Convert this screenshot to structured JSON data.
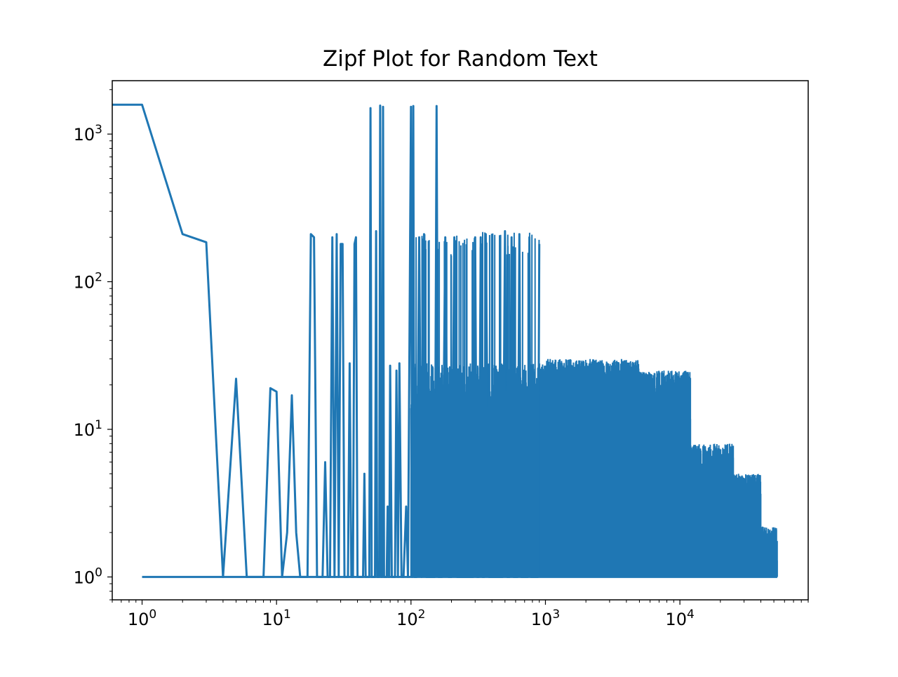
{
  "chart_data": {
    "type": "line",
    "title": "Zipf Plot for Random Text",
    "xlabel": "",
    "ylabel": "",
    "xscale": "log",
    "yscale": "log",
    "xlim": [
      0.6,
      90000
    ],
    "ylim": [
      0.7,
      2300
    ],
    "grid": false,
    "legend": "none",
    "line_color": "#1f77b4",
    "x_ticks": [
      {
        "value": 1,
        "base": "10",
        "exp": "0"
      },
      {
        "value": 10,
        "base": "10",
        "exp": "1"
      },
      {
        "value": 100,
        "base": "10",
        "exp": "2"
      },
      {
        "value": 1000,
        "base": "10",
        "exp": "3"
      },
      {
        "value": 10000,
        "base": "10",
        "exp": "4"
      }
    ],
    "y_ticks": [
      {
        "value": 1,
        "base": "10",
        "exp": "0"
      },
      {
        "value": 10,
        "base": "10",
        "exp": "1"
      },
      {
        "value": 100,
        "base": "10",
        "exp": "2"
      },
      {
        "value": 1000,
        "base": "10",
        "exp": "3"
      }
    ],
    "series": [
      {
        "x": [
          0,
          1,
          2,
          3,
          4,
          5,
          6,
          7,
          8,
          9,
          10,
          11,
          12,
          13,
          14,
          15,
          16,
          17,
          18,
          19,
          20,
          21,
          22,
          23,
          24,
          25,
          26,
          27,
          28,
          29,
          30,
          31,
          32,
          33,
          34,
          35,
          36,
          37,
          38,
          39,
          40,
          41,
          42,
          43,
          44,
          45,
          46,
          47,
          48,
          49,
          50,
          51,
          52,
          53,
          54,
          55,
          56,
          57,
          58,
          59,
          60,
          61,
          62,
          63,
          64,
          65,
          66,
          67,
          68,
          69,
          70,
          72,
          74,
          76,
          78,
          80,
          82,
          85,
          88,
          92,
          95,
          100,
          102,
          104,
          106,
          110,
          115,
          120,
          125,
          130,
          140,
          150,
          155,
          160,
          170,
          180,
          190,
          200,
          210,
          220,
          230,
          240,
          250,
          260,
          270,
          280,
          290,
          300,
          310,
          320,
          330,
          340,
          350,
          360,
          380,
          400,
          420,
          440,
          460,
          480,
          500,
          520,
          540,
          560,
          580,
          600,
          620,
          640,
          660,
          680,
          700,
          720,
          740,
          760,
          780,
          800,
          820,
          840,
          860,
          880,
          900
        ],
        "y": [
          1580,
          1580,
          210,
          185,
          1,
          22,
          1,
          1,
          1,
          19,
          18,
          1,
          2,
          17,
          2,
          1,
          1,
          1,
          210,
          200,
          1,
          1,
          1,
          6,
          1,
          1,
          200,
          1,
          210,
          1,
          180,
          180,
          1,
          1,
          1,
          28,
          1,
          1,
          180,
          200,
          1,
          1,
          1,
          1,
          1,
          5,
          1,
          1,
          1,
          1,
          1500,
          1,
          1,
          1,
          1,
          220,
          1,
          1,
          1,
          1560,
          1,
          1,
          1530,
          1,
          1,
          1,
          1,
          3,
          1,
          1,
          27,
          1,
          1,
          1,
          25,
          1,
          28,
          1,
          1,
          3,
          1,
          1530,
          1,
          1550,
          1,
          1,
          200,
          1,
          210,
          1,
          1,
          1,
          1550,
          1,
          1,
          200,
          1,
          1,
          200,
          1,
          1,
          1,
          1,
          1,
          1,
          1,
          1,
          200,
          1,
          1,
          200,
          1,
          1,
          210,
          1,
          1,
          1,
          1,
          1,
          1,
          220,
          1,
          1,
          200,
          1,
          1,
          1,
          210,
          1,
          1,
          1,
          1,
          1,
          200,
          1,
          1,
          1,
          1,
          1,
          1,
          180
        ]
      }
    ]
  }
}
